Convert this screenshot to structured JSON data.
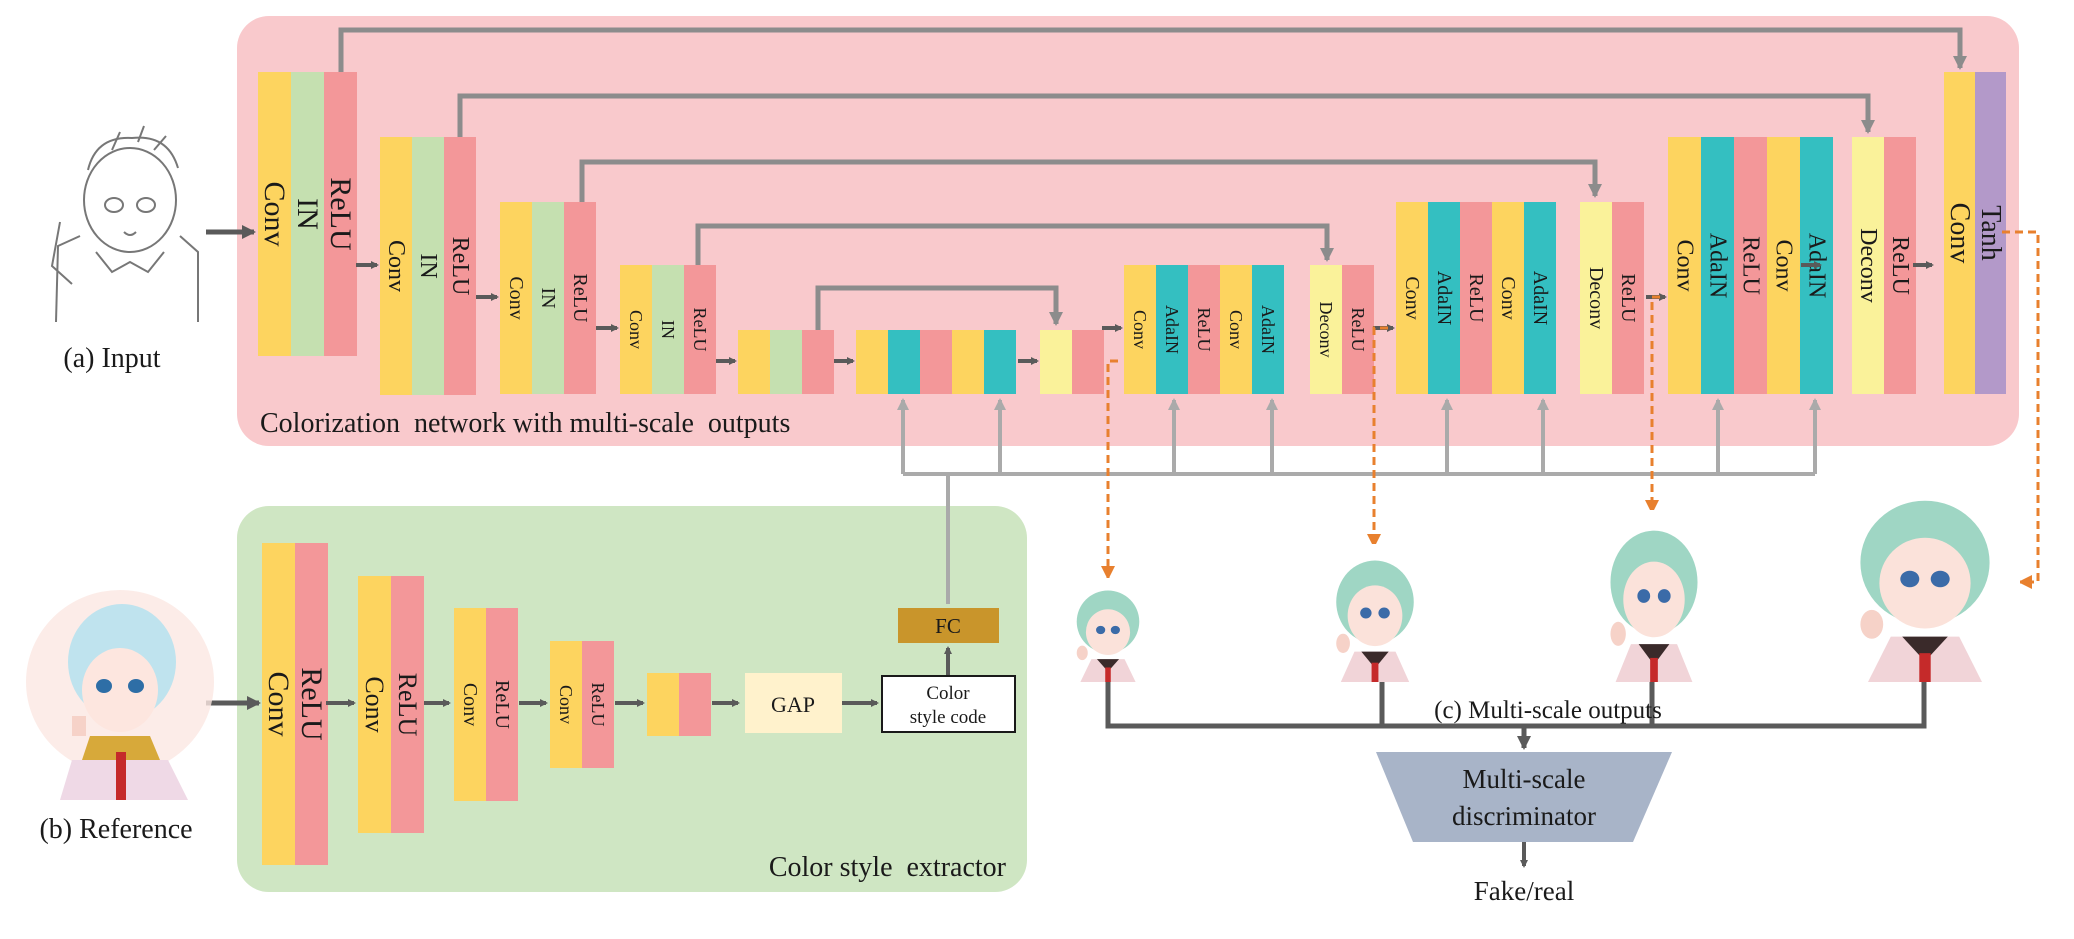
{
  "labels": {
    "input": "(a) Input",
    "reference": "(b) Reference",
    "colorization_network": "Colorization  network with multi-scale  outputs",
    "color_style_extractor": "Color style  extractor",
    "multiscale_outputs": "(c) Multi-scale outputs",
    "discriminator": [
      "Multi-scale",
      "discriminator"
    ],
    "fake_real": "Fake/real",
    "gap": "GAP",
    "fc": "FC",
    "style_code": [
      "Color",
      "style code"
    ]
  },
  "layer_names": {
    "conv": "Conv",
    "in": "IN",
    "relu": "ReLU",
    "adain": "AdaIN",
    "deconv": "Deconv",
    "tanh": "Tanh"
  },
  "colors": {
    "conv": "#fdd45f",
    "in": "#c5e0b0",
    "relu": "#f39799",
    "adain": "#34bfc1",
    "deconv": "#faf29a",
    "tanh": "#b399c9",
    "fc": "#c9952b",
    "gap": "#fff2cc",
    "colorization_bg": "#f9c9cc",
    "extractor_bg": "#cfe6c3",
    "discriminator": "#a8b4c8",
    "arrow_dark": "#5a5a5a",
    "arrow_light": "#999999",
    "arrow_orange": "#e8802e"
  }
}
